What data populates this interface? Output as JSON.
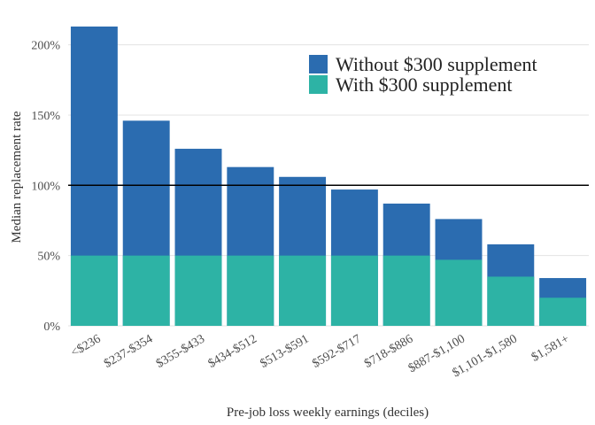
{
  "chart_data": {
    "type": "bar",
    "title": "",
    "xlabel": "Pre-job loss weekly earnings (deciles)",
    "ylabel": "Median replacement rate",
    "categories": [
      "<$236",
      "$237-$354",
      "$355-$433",
      "$434-$512",
      "$513-$591",
      "$592-$717",
      "$718-$886",
      "$887-$1,100",
      "$1,101-$1,580",
      "$1,581+"
    ],
    "series": [
      {
        "name": "Without $300 supplement",
        "color": "#2b6cb0",
        "values": [
          213,
          146,
          126,
          113,
          106,
          97,
          87,
          76,
          58,
          34
        ]
      },
      {
        "name": "With $300 supplement",
        "color": "#2db3a5",
        "values": [
          50,
          50,
          50,
          50,
          50,
          50,
          50,
          47,
          35,
          20
        ]
      }
    ],
    "ylim": [
      0,
      220
    ],
    "yticks": [
      0,
      50,
      100,
      150,
      200
    ],
    "ytick_labels": [
      "0%",
      "50%",
      "100%",
      "150%",
      "200%"
    ],
    "reference_line": 100,
    "grid": true,
    "legend_position": "top-right"
  }
}
